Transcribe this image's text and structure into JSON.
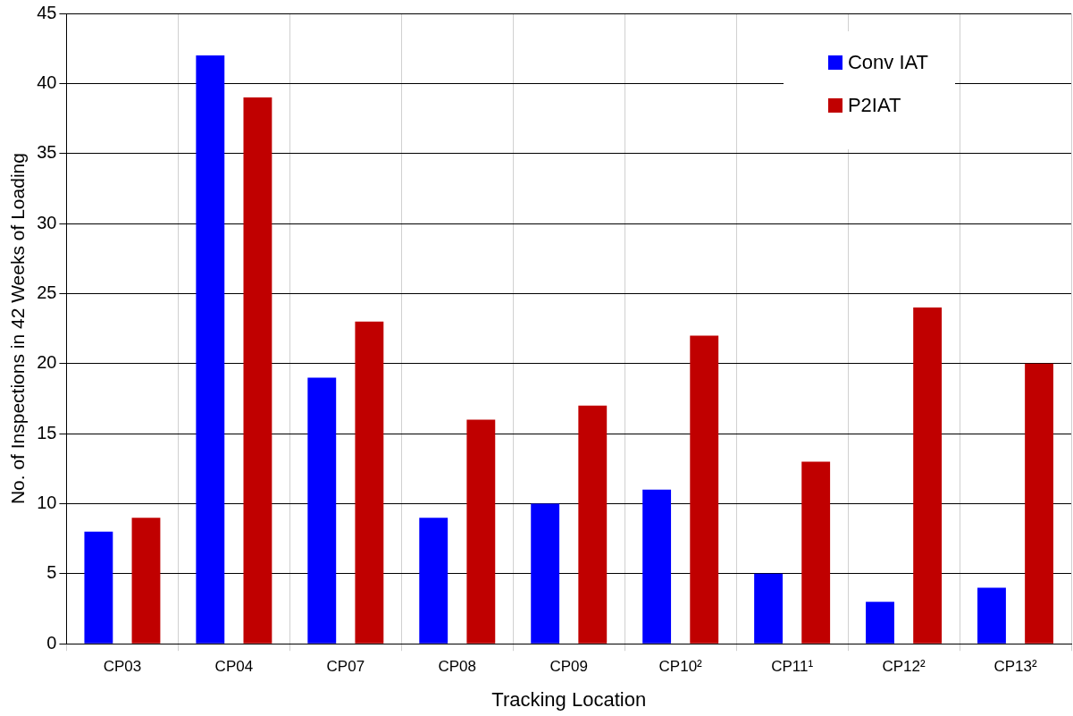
{
  "chart_data": {
    "type": "bar",
    "xlabel": "Tracking Location",
    "ylabel": "No. of Inspections in 42 Weeks of Loading",
    "categories": [
      "CP03",
      "CP04",
      "CP07",
      "CP08",
      "CP09",
      "CP10²",
      "CP11¹",
      "CP12²",
      "CP13²"
    ],
    "series": [
      {
        "name": "Conv IAT",
        "color": "#0000ff",
        "values": [
          8,
          42,
          19,
          9,
          10,
          11,
          5,
          3,
          4
        ]
      },
      {
        "name": "P2IAT",
        "color": "#c00000",
        "values": [
          9,
          39,
          23,
          16,
          17,
          22,
          13,
          24,
          20
        ]
      }
    ],
    "ylim": [
      0,
      45
    ],
    "yticks": [
      0,
      5,
      10,
      15,
      20,
      25,
      30,
      35,
      40,
      45
    ],
    "grid": true,
    "legend": "top right"
  }
}
